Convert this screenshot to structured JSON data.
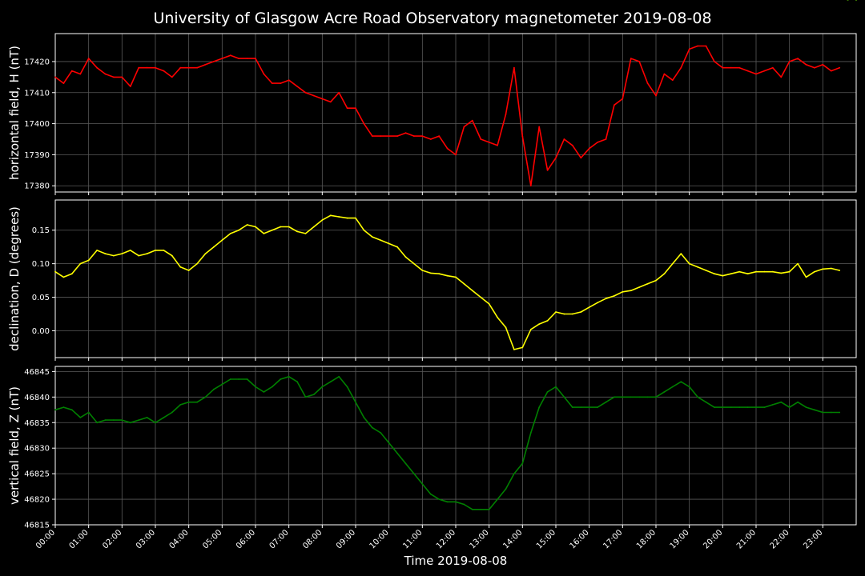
{
  "chart_data": {
    "type": "line",
    "title": "University of Glasgow Acre Road Observatory magnetometer 2019-08-08",
    "xlabel": "Time 2019-08-08",
    "x_ticks": [
      "00:00",
      "01:00",
      "02:00",
      "03:00",
      "04:00",
      "05:00",
      "06:00",
      "07:00",
      "08:00",
      "09:00",
      "10:00",
      "11:00",
      "12:00",
      "13:00",
      "14:00",
      "15:00",
      "16:00",
      "17:00",
      "18:00",
      "19:00",
      "20:00",
      "21:00",
      "22:00",
      "23:00"
    ],
    "xlim": [
      0,
      24
    ],
    "grid": true,
    "background": "#000000",
    "panels": [
      {
        "ylabel": "horizontal field, H (nT)",
        "ylim": [
          17378,
          17429
        ],
        "y_ticks": [
          "17380",
          "17390",
          "17400",
          "17410",
          "17420"
        ],
        "y_tick_values": [
          17380,
          17390,
          17400,
          17410,
          17420
        ],
        "color": "#ff0000",
        "series_x": [
          0,
          0.25,
          0.5,
          0.75,
          1,
          1.25,
          1.5,
          1.75,
          2,
          2.25,
          2.5,
          2.75,
          3,
          3.25,
          3.5,
          3.75,
          4,
          4.25,
          4.5,
          4.75,
          5,
          5.25,
          5.5,
          5.75,
          6,
          6.25,
          6.5,
          6.75,
          7,
          7.25,
          7.5,
          7.75,
          8,
          8.25,
          8.5,
          8.75,
          9,
          9.25,
          9.5,
          9.75,
          10,
          10.25,
          10.5,
          10.75,
          11,
          11.25,
          11.5,
          11.75,
          12,
          12.25,
          12.5,
          12.75,
          13,
          13.25,
          13.5,
          13.75,
          14,
          14.25,
          14.5,
          14.75,
          15,
          15.25,
          15.5,
          15.75,
          16,
          16.25,
          16.5,
          16.75,
          17,
          17.25,
          17.5,
          17.75,
          18,
          18.25,
          18.5,
          18.75,
          19,
          19.25,
          19.5,
          19.75,
          20,
          20.25,
          20.5,
          20.75,
          21,
          21.25,
          21.5,
          21.75,
          22,
          22.25,
          22.5,
          22.75,
          23,
          23.25,
          23.5,
          23.75,
          24
        ],
        "series_y": [
          17415,
          17413,
          17417,
          17416,
          17421,
          17418,
          17416,
          17415,
          17415,
          17412,
          17418,
          17418,
          17418,
          17417,
          17415,
          17418,
          17418,
          17418,
          17419,
          17420,
          17421,
          17422,
          17421,
          17421,
          17421,
          17416,
          17413,
          17413,
          17414,
          17412,
          17410,
          17409,
          17408,
          17407,
          17410,
          17405,
          17405,
          17400,
          17396,
          17396,
          17396,
          17396,
          17397,
          17396,
          17396,
          17395,
          17396,
          17392,
          17390,
          17399,
          17401,
          17395,
          17394,
          17393,
          17403,
          17418,
          17396,
          17380,
          17399,
          17385,
          17389,
          17395,
          17393,
          17389,
          17392,
          17394,
          17395,
          17406,
          17408,
          17421,
          17420,
          17413,
          17409,
          17416,
          17414,
          17418,
          17424,
          17425,
          17425,
          17420,
          17418,
          17418,
          17418,
          17417,
          17416,
          17417,
          17418,
          17415,
          17420,
          17421,
          17419,
          17418,
          17419,
          17417,
          17418
        ],
        "unit": "nT"
      },
      {
        "ylabel": "declination, D (degrees)",
        "ylim": [
          -0.04,
          0.195
        ],
        "y_ticks": [
          "0.00",
          "0.05",
          "0.10",
          "0.15"
        ],
        "y_tick_values": [
          0.0,
          0.05,
          0.1,
          0.15
        ],
        "color": "#ffff00",
        "series_x": [
          0,
          0.25,
          0.5,
          0.75,
          1,
          1.25,
          1.5,
          1.75,
          2,
          2.25,
          2.5,
          2.75,
          3,
          3.25,
          3.5,
          3.75,
          4,
          4.25,
          4.5,
          4.75,
          5,
          5.25,
          5.5,
          5.75,
          6,
          6.25,
          6.5,
          6.75,
          7,
          7.25,
          7.5,
          7.75,
          8,
          8.25,
          8.5,
          8.75,
          9,
          9.25,
          9.5,
          9.75,
          10,
          10.25,
          10.5,
          10.75,
          11,
          11.25,
          11.5,
          11.75,
          12,
          12.25,
          12.5,
          12.75,
          13,
          13.25,
          13.5,
          13.75,
          14,
          14.25,
          14.5,
          14.75,
          15,
          15.25,
          15.5,
          15.75,
          16,
          16.25,
          16.5,
          16.75,
          17,
          17.25,
          17.5,
          17.75,
          18,
          18.25,
          18.5,
          18.75,
          19,
          19.25,
          19.5,
          19.75,
          20,
          20.25,
          20.5,
          20.75,
          21,
          21.25,
          21.5,
          21.75,
          22,
          22.25,
          22.5,
          22.75,
          23,
          23.25,
          23.5,
          23.75,
          24
        ],
        "series_y": [
          0.088,
          0.08,
          0.085,
          0.1,
          0.105,
          0.12,
          0.115,
          0.112,
          0.115,
          0.12,
          0.112,
          0.115,
          0.12,
          0.12,
          0.112,
          0.095,
          0.09,
          0.1,
          0.115,
          0.125,
          0.135,
          0.145,
          0.15,
          0.158,
          0.155,
          0.145,
          0.15,
          0.155,
          0.155,
          0.148,
          0.145,
          0.155,
          0.165,
          0.172,
          0.17,
          0.168,
          0.168,
          0.15,
          0.14,
          0.135,
          0.13,
          0.125,
          0.11,
          0.1,
          0.09,
          0.086,
          0.085,
          0.082,
          0.08,
          0.07,
          0.06,
          0.05,
          0.04,
          0.02,
          0.005,
          -0.028,
          -0.025,
          0.002,
          0.01,
          0.015,
          0.028,
          0.025,
          0.025,
          0.028,
          0.035,
          0.042,
          0.048,
          0.052,
          0.058,
          0.06,
          0.065,
          0.07,
          0.075,
          0.085,
          0.1,
          0.115,
          0.1,
          0.095,
          0.09,
          0.085,
          0.082,
          0.085,
          0.088,
          0.085,
          0.088,
          0.088,
          0.088,
          0.086,
          0.088,
          0.1,
          0.08,
          0.088,
          0.092,
          0.093,
          0.09
        ],
        "unit": "degrees"
      },
      {
        "ylabel": "vertical field, Z (nT)",
        "ylim": [
          46815,
          46846
        ],
        "y_ticks": [
          "46815",
          "46820",
          "46825",
          "46830",
          "46835",
          "46840",
          "46845"
        ],
        "y_tick_values": [
          46815,
          46820,
          46825,
          46830,
          46835,
          46840,
          46845
        ],
        "color": "#008000",
        "series_x": [
          0,
          0.25,
          0.5,
          0.75,
          1,
          1.25,
          1.5,
          1.75,
          2,
          2.25,
          2.5,
          2.75,
          3,
          3.25,
          3.5,
          3.75,
          4,
          4.25,
          4.5,
          4.75,
          5,
          5.25,
          5.5,
          5.75,
          6,
          6.25,
          6.5,
          6.75,
          7,
          7.25,
          7.5,
          7.75,
          8,
          8.25,
          8.5,
          8.75,
          9,
          9.25,
          9.5,
          9.75,
          10,
          10.25,
          10.5,
          10.75,
          11,
          11.25,
          11.5,
          11.75,
          12,
          12.25,
          12.5,
          12.75,
          13,
          13.25,
          13.5,
          13.75,
          14,
          14.25,
          14.5,
          14.75,
          15,
          15.25,
          15.5,
          15.75,
          16,
          16.25,
          16.5,
          16.75,
          17,
          17.25,
          17.5,
          17.75,
          18,
          18.25,
          18.5,
          18.75,
          19,
          19.25,
          19.5,
          19.75,
          20,
          20.25,
          20.5,
          20.75,
          21,
          21.25,
          21.5,
          21.75,
          22,
          22.25,
          22.5,
          22.75,
          23,
          23.25,
          23.5,
          23.75,
          24
        ],
        "series_y": [
          46837.5,
          46838,
          46837.5,
          46836,
          46837,
          46835,
          46835.5,
          46835.5,
          46835.5,
          46835,
          46835.5,
          46836,
          46835,
          46836,
          46837,
          46838.5,
          46839,
          46839,
          46840,
          46841.5,
          46842.5,
          46843.5,
          46843.5,
          46843.5,
          46842,
          46841,
          46842,
          46843.5,
          46844,
          46843,
          46840,
          46840.5,
          46842,
          46843,
          46844,
          46842,
          46839,
          46836,
          46834,
          46833,
          46831,
          46829,
          46827,
          46825,
          46823,
          46821,
          46820,
          46819.5,
          46819.5,
          46819,
          46818,
          46818,
          46818,
          46820,
          46822,
          46825,
          46827,
          46833,
          46838,
          46841,
          46842,
          46840,
          46838,
          46838,
          46838,
          46838,
          46839,
          46840,
          46840,
          46840,
          46840,
          46840,
          46840,
          46841,
          46842,
          46843,
          46842,
          46840,
          46839,
          46838,
          46838,
          46838,
          46838,
          46838,
          46838,
          46838,
          46838.5,
          46839,
          46838,
          46839,
          46838,
          46837.5,
          46837,
          46837,
          46837
        ],
        "unit": "nT"
      }
    ]
  }
}
